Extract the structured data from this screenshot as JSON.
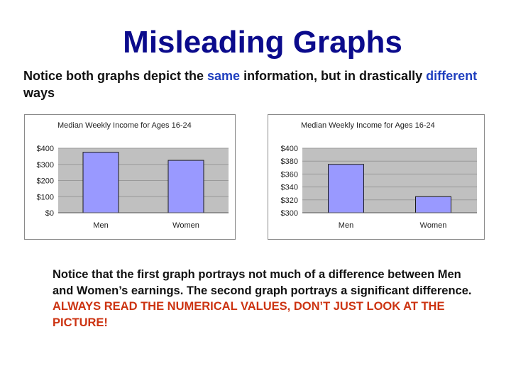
{
  "slide": {
    "title": "Misleading Graphs",
    "intro": {
      "part1": "Notice both graphs depict the ",
      "highlight1": "same",
      "part2": " information, but in drastically ",
      "highlight2": "different",
      "part3": " ways"
    },
    "summary": {
      "text": "Notice that the first graph portrays not much of a difference between Men and Women’s earnings.  The second graph portrays a significant difference.  ",
      "warning": "ALWAYS READ THE NUMERICAL VALUES, DON’T JUST LOOK AT THE PICTURE!"
    },
    "colors": {
      "title": "#0b0b8c",
      "highlight": "#1f3fbf",
      "warning": "#cc3311",
      "plot_background": "#c0c0c0",
      "bar_fill": "#9999ff",
      "bar_stroke": "#1a1a1a"
    }
  },
  "chart_data": [
    {
      "type": "bar",
      "title": "Median Weekly Income for Ages 16-24",
      "categories": [
        "Men",
        "Women"
      ],
      "values": [
        375,
        325
      ],
      "ylim": [
        0,
        400
      ],
      "yticks": [
        0,
        100,
        200,
        300,
        400
      ],
      "ytick_labels": [
        "$0",
        "$100",
        "$200",
        "$300",
        "$400"
      ],
      "grid": true,
      "legend": "none"
    },
    {
      "type": "bar",
      "title": "Median Weekly Income for Ages 16-24",
      "categories": [
        "Men",
        "Women"
      ],
      "values": [
        375,
        325
      ],
      "ylim": [
        300,
        400
      ],
      "yticks": [
        300,
        320,
        340,
        360,
        380,
        400
      ],
      "ytick_labels": [
        "$300",
        "$320",
        "$340",
        "$360",
        "$380",
        "$400"
      ],
      "grid": true,
      "legend": "none"
    }
  ]
}
